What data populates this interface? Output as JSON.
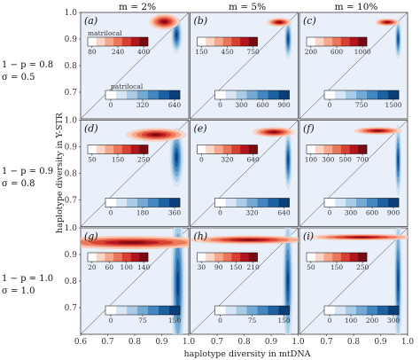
{
  "column_titles": [
    "m = 2%",
    "m = 5%",
    "m = 10%"
  ],
  "row_labels": [
    {
      "line1": "1 − p = 0.8",
      "line2": "σ = 0.5"
    },
    {
      "line1": "1 − p = 0.9",
      "line2": "σ = 0.8"
    },
    {
      "line1": "1 − p = 1.0",
      "line2": "σ = 1.0"
    }
  ],
  "x_label": "haplotype diversity in mtDNA",
  "y_label": "haplotype diversity in Y-STR",
  "colorbar_labels": {
    "red": "matrilocal",
    "blue": "patrilocal"
  },
  "colors": {
    "panel_bg": "#e9f0fa",
    "reds": [
      "#ffffff",
      "#fbd6c6",
      "#f6a88c",
      "#ec7659",
      "#d93f33",
      "#b3151f",
      "#7a0a12"
    ],
    "blues": [
      "#ffffff",
      "#d7e6f4",
      "#a9cbe5",
      "#74a9d3",
      "#4486bf",
      "#1c61a2",
      "#0b3f7a"
    ]
  },
  "chart_data": {
    "type": "contour",
    "xlim": [
      0.6,
      1.0
    ],
    "ylim": [
      0.6,
      1.0
    ],
    "x_ticks": [
      "0.6",
      "0.7",
      "0.8",
      "0.9",
      "1.0"
    ],
    "y_ticks": [
      "0.7",
      "0.8",
      "0.9",
      "1.0"
    ],
    "diagonal_reference_line": true,
    "panels": [
      {
        "label": "(a)",
        "matrilocal": {
          "cx": 0.91,
          "cy": 0.965,
          "sx": 0.025,
          "sy": 0.013
        },
        "patrilocal": {
          "cx": 0.955,
          "cy": 0.915,
          "sx": 0.009,
          "sy": 0.03
        },
        "red_ticks": [
          "80",
          "240",
          "400"
        ],
        "blue_ticks": [
          "0",
          "320",
          "640"
        ]
      },
      {
        "label": "(b)",
        "matrilocal": {
          "cx": 0.93,
          "cy": 0.963,
          "sx": 0.02,
          "sy": 0.007
        },
        "patrilocal": {
          "cx": 0.963,
          "cy": 0.9,
          "sx": 0.006,
          "sy": 0.033
        },
        "red_ticks": [
          "150",
          "450",
          "750"
        ],
        "blue_ticks": [
          "0",
          "300",
          "600",
          "900"
        ]
      },
      {
        "label": "(c)",
        "matrilocal": {
          "cx": 0.925,
          "cy": 0.963,
          "sx": 0.02,
          "sy": 0.006
        },
        "patrilocal": {
          "cx": 0.965,
          "cy": 0.9,
          "sx": 0.005,
          "sy": 0.033
        },
        "red_ticks": [
          "200",
          "600",
          "1000"
        ],
        "blue_ticks": [
          "0",
          "750",
          "1500"
        ]
      },
      {
        "label": "(d)",
        "matrilocal": {
          "cx": 0.88,
          "cy": 0.945,
          "sx": 0.05,
          "sy": 0.011
        },
        "patrilocal": {
          "cx": 0.955,
          "cy": 0.86,
          "sx": 0.011,
          "sy": 0.05
        },
        "red_ticks": [
          "50",
          "150",
          "250"
        ],
        "blue_ticks": [
          "0",
          "180",
          "360"
        ]
      },
      {
        "label": "(e)",
        "matrilocal": {
          "cx": 0.91,
          "cy": 0.955,
          "sx": 0.035,
          "sy": 0.008
        },
        "patrilocal": {
          "cx": 0.963,
          "cy": 0.85,
          "sx": 0.006,
          "sy": 0.05
        },
        "red_ticks": [
          "0",
          "320",
          "640"
        ],
        "blue_ticks": [
          "0",
          "320",
          "640"
        ]
      },
      {
        "label": "(f)",
        "matrilocal": {
          "cx": 0.89,
          "cy": 0.96,
          "sx": 0.04,
          "sy": 0.006
        },
        "patrilocal": {
          "cx": 0.965,
          "cy": 0.85,
          "sx": 0.005,
          "sy": 0.06
        },
        "red_ticks": [
          "100",
          "300",
          "500",
          "700"
        ],
        "blue_ticks": [
          "0",
          "300",
          "600",
          "900"
        ]
      },
      {
        "label": "(g)",
        "matrilocal": {
          "cx": 0.79,
          "cy": 0.945,
          "sx": 0.14,
          "sy": 0.011
        },
        "patrilocal": {
          "cx": 0.96,
          "cy": 0.79,
          "sx": 0.011,
          "sy": 0.13
        },
        "red_ticks": [
          "20",
          "60",
          "100",
          "140"
        ],
        "blue_ticks": [
          "0",
          "75",
          "150"
        ]
      },
      {
        "label": "(h)",
        "matrilocal": {
          "cx": 0.82,
          "cy": 0.955,
          "sx": 0.1,
          "sy": 0.007
        },
        "patrilocal": {
          "cx": 0.962,
          "cy": 0.8,
          "sx": 0.008,
          "sy": 0.11
        },
        "red_ticks": [
          "30",
          "90",
          "150",
          "210"
        ],
        "blue_ticks": [
          "0",
          "75",
          "150"
        ]
      },
      {
        "label": "(i)",
        "matrilocal": {
          "cx": 0.83,
          "cy": 0.965,
          "sx": 0.09,
          "sy": 0.005
        },
        "patrilocal": {
          "cx": 0.965,
          "cy": 0.8,
          "sx": 0.006,
          "sy": 0.11
        },
        "red_ticks": [
          "50",
          "150",
          "250"
        ],
        "blue_ticks": [
          "0",
          "100",
          "200",
          "300"
        ]
      }
    ]
  }
}
